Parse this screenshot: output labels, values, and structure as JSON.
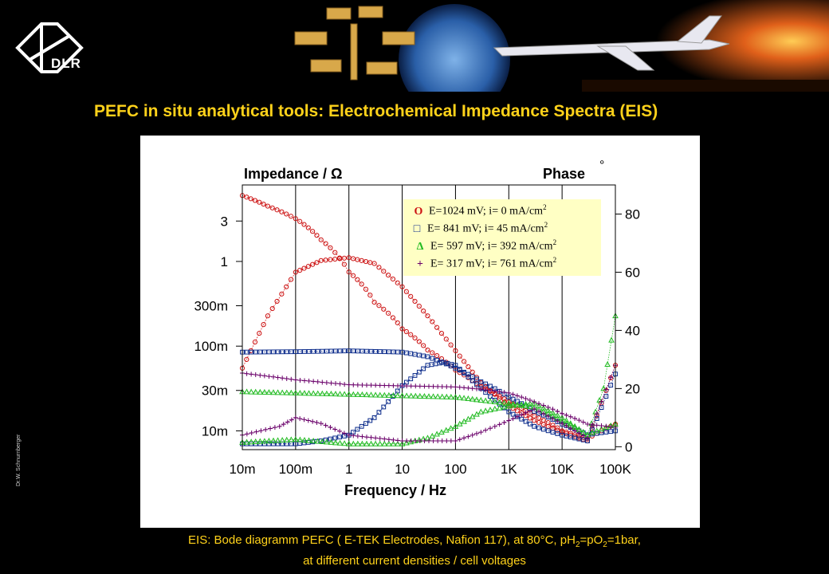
{
  "banner": {
    "logo_text": "DLR"
  },
  "title": "PEFC in situ analytical tools:  Electrochemical Impedance Spectra (EIS)",
  "side_note": "Dr.W. Schnurnberger",
  "caption": {
    "line1_a": "EIS: Bode diagramm  PEFC ( E-TEK Electrodes, Nafion 117), at 80°C, pH",
    "sub_a": "2",
    "line1_b": "=pO",
    "sub_b": "2",
    "line1_c": "=1bar,",
    "line2": "at different  current densities / cell voltages"
  },
  "legend": [
    {
      "symbol": "O",
      "color": "#cc1111",
      "text": "E=1024 mV; i= 0 mA/cm",
      "sup": "2"
    },
    {
      "symbol": "□",
      "color": "#0a2a8a",
      "text": "E= 841 mV; i= 45 mA/cm",
      "sup": "2"
    },
    {
      "symbol": "Δ",
      "color": "#22bb22",
      "text": "E= 597 mV; i= 392 mA/cm",
      "sup": "2"
    },
    {
      "symbol": "+",
      "color": "#6a006a",
      "text": "E= 317 mV; i= 761 mA/cm",
      "sup": "2"
    }
  ],
  "chart_data": {
    "type": "line",
    "title": "",
    "ylabel": "Impedance / Ω",
    "y2label": "Phase",
    "y2unit": "°",
    "xlabel": "Frequency / Hz",
    "xscale": "log",
    "xlim": [
      0.01,
      100000
    ],
    "x_ticks": [
      0.01,
      0.1,
      1,
      10,
      100,
      1000,
      10000,
      100000
    ],
    "x_tick_labels": [
      "10m",
      "100m",
      "1",
      "10",
      "100",
      "1K",
      "10K",
      "100K"
    ],
    "yscale": "log",
    "ylim": [
      0.006,
      8
    ],
    "y_ticks": [
      0.01,
      0.03,
      0.1,
      0.3,
      1,
      3
    ],
    "y_tick_labels": [
      "10m",
      "30m",
      "100m",
      "300m",
      "1",
      "3"
    ],
    "y2lim": [
      -1,
      90
    ],
    "y2_ticks": [
      0,
      20,
      40,
      60,
      80
    ],
    "y2_tick_labels": [
      "0",
      "20",
      "40",
      "60",
      "80"
    ],
    "grid": "vertical lines at decades",
    "legend_position": "top-right",
    "series": [
      {
        "color": "#cc1111",
        "marker": "circle",
        "axis": "impedance",
        "points": [
          [
            0.01,
            6.0
          ],
          [
            0.03,
            4.5
          ],
          [
            0.1,
            3.2
          ],
          [
            0.3,
            1.8
          ],
          [
            1,
            0.75
          ],
          [
            3,
            0.33
          ],
          [
            10,
            0.16
          ],
          [
            30,
            0.09
          ],
          [
            100,
            0.052
          ],
          [
            300,
            0.033
          ],
          [
            1000,
            0.022
          ],
          [
            3000,
            0.015
          ],
          [
            10000,
            0.01
          ],
          [
            30000,
            0.008
          ],
          [
            100000,
            0.012
          ]
        ]
      },
      {
        "color": "#cc1111",
        "marker": "circle",
        "axis": "phase",
        "points": [
          [
            0.01,
            27
          ],
          [
            0.03,
            45
          ],
          [
            0.1,
            60
          ],
          [
            0.3,
            64
          ],
          [
            1,
            65
          ],
          [
            3,
            63
          ],
          [
            10,
            55
          ],
          [
            30,
            45
          ],
          [
            100,
            33
          ],
          [
            300,
            22
          ],
          [
            1000,
            14
          ],
          [
            3000,
            9
          ],
          [
            10000,
            5
          ],
          [
            30000,
            2
          ],
          [
            100000,
            28
          ]
        ]
      },
      {
        "color": "#0a2a8a",
        "marker": "square",
        "axis": "impedance",
        "points": [
          [
            0.01,
            0.085
          ],
          [
            0.1,
            0.086
          ],
          [
            1,
            0.088
          ],
          [
            10,
            0.085
          ],
          [
            30,
            0.075
          ],
          [
            100,
            0.055
          ],
          [
            300,
            0.038
          ],
          [
            1000,
            0.025
          ],
          [
            3000,
            0.017
          ],
          [
            10000,
            0.012
          ],
          [
            30000,
            0.009
          ],
          [
            100000,
            0.01
          ]
        ]
      },
      {
        "color": "#0a2a8a",
        "marker": "square",
        "axis": "phase",
        "points": [
          [
            0.01,
            1
          ],
          [
            0.1,
            1
          ],
          [
            0.3,
            2
          ],
          [
            1,
            4
          ],
          [
            3,
            10
          ],
          [
            10,
            21
          ],
          [
            30,
            28
          ],
          [
            60,
            29
          ],
          [
            100,
            28
          ],
          [
            300,
            20
          ],
          [
            1000,
            12
          ],
          [
            3000,
            7
          ],
          [
            10000,
            4
          ],
          [
            30000,
            2
          ],
          [
            100000,
            25
          ]
        ]
      },
      {
        "color": "#22bb22",
        "marker": "triangle",
        "axis": "impedance",
        "points": [
          [
            0.01,
            0.029
          ],
          [
            0.1,
            0.028
          ],
          [
            1,
            0.027
          ],
          [
            10,
            0.026
          ],
          [
            100,
            0.025
          ],
          [
            300,
            0.023
          ],
          [
            1000,
            0.021
          ],
          [
            3000,
            0.019
          ],
          [
            10000,
            0.013
          ],
          [
            30000,
            0.009
          ],
          [
            100000,
            0.012
          ]
        ]
      },
      {
        "color": "#22bb22",
        "marker": "triangle",
        "axis": "phase",
        "points": [
          [
            0.01,
            1.5
          ],
          [
            0.1,
            2.5
          ],
          [
            1,
            1
          ],
          [
            10,
            1
          ],
          [
            30,
            3
          ],
          [
            100,
            7
          ],
          [
            300,
            12
          ],
          [
            1000,
            14
          ],
          [
            3000,
            15
          ],
          [
            10000,
            10
          ],
          [
            30000,
            4
          ],
          [
            60000,
            20
          ],
          [
            100000,
            45
          ]
        ]
      },
      {
        "color": "#6a006a",
        "marker": "plus",
        "axis": "impedance",
        "points": [
          [
            0.01,
            0.048
          ],
          [
            0.1,
            0.04
          ],
          [
            1,
            0.035
          ],
          [
            10,
            0.034
          ],
          [
            100,
            0.033
          ],
          [
            300,
            0.031
          ],
          [
            1000,
            0.028
          ],
          [
            3000,
            0.022
          ],
          [
            10000,
            0.016
          ],
          [
            30000,
            0.012
          ],
          [
            100000,
            0.011
          ]
        ]
      },
      {
        "color": "#6a006a",
        "marker": "plus",
        "axis": "phase",
        "points": [
          [
            0.01,
            4
          ],
          [
            0.05,
            7
          ],
          [
            0.1,
            10
          ],
          [
            0.3,
            8
          ],
          [
            1,
            4
          ],
          [
            10,
            2
          ],
          [
            100,
            2
          ],
          [
            300,
            5
          ],
          [
            1000,
            9
          ],
          [
            3000,
            13
          ],
          [
            10000,
            8
          ],
          [
            30000,
            3
          ],
          [
            100000,
            28
          ]
        ]
      }
    ]
  }
}
